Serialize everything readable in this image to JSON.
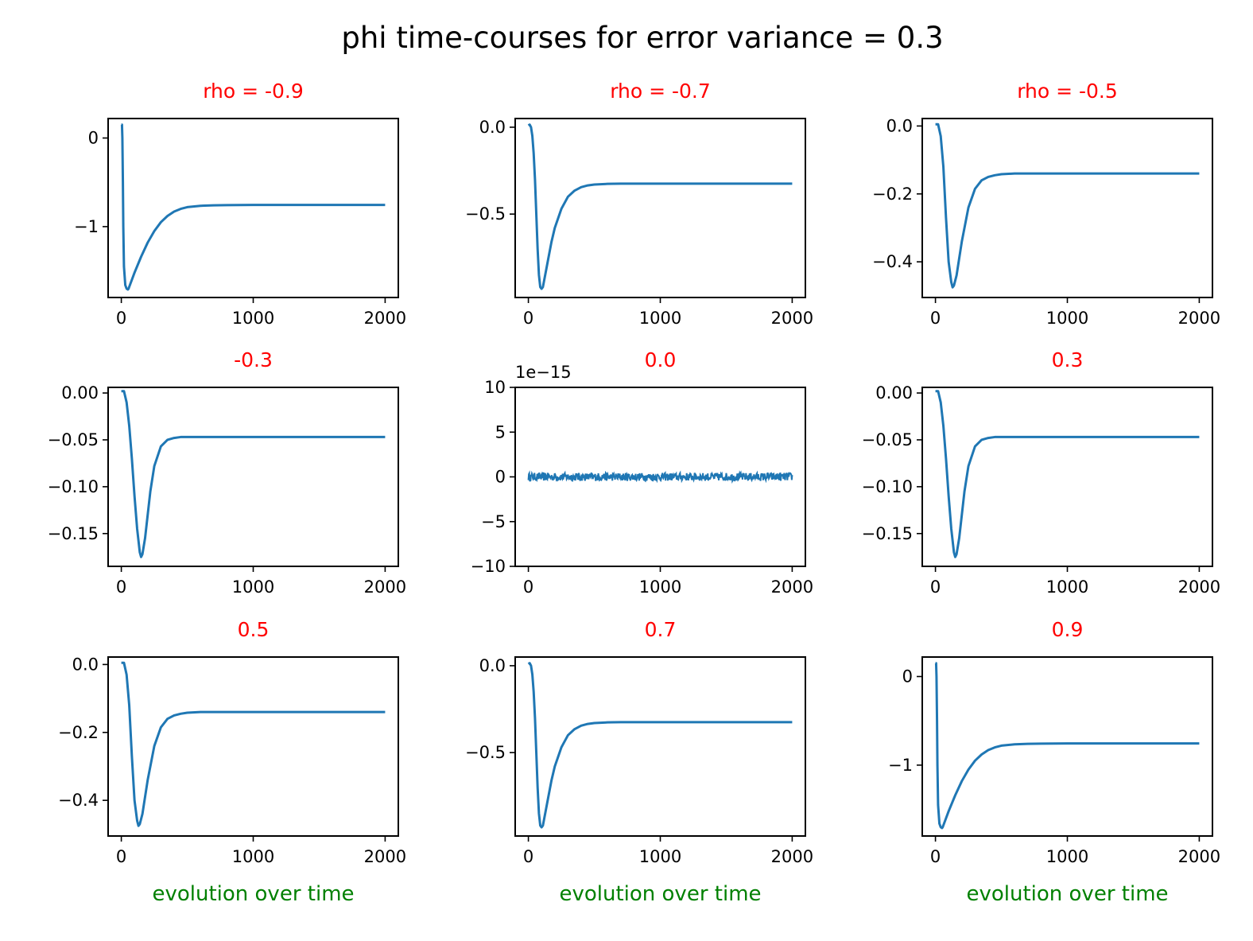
{
  "suptitle": "phi time-courses for error variance = 0.3",
  "colors": {
    "line": "#1f77b4",
    "title": "#ff0000",
    "xlabel": "#008000",
    "text": "#000000",
    "frame": "#000000"
  },
  "chart_data": [
    {
      "type": "line",
      "title": "rho = -0.9",
      "xlabel": "",
      "xlim": [
        -100,
        2100
      ],
      "ylim": [
        -1.8,
        0.22
      ],
      "xticks": [
        0,
        1000,
        2000
      ],
      "xticklabels": [
        "0",
        "1000",
        "2000"
      ],
      "yticks": [
        0,
        -1
      ],
      "yticklabels": [
        "0",
        "−1"
      ],
      "offset_label": "",
      "series": [
        {
          "x": [
            0,
            5,
            8,
            12,
            15,
            20,
            30,
            40,
            50,
            55,
            60,
            80,
            100,
            150,
            200,
            250,
            300,
            350,
            400,
            450,
            500,
            600,
            700,
            800,
            1000,
            1500,
            2000
          ],
          "y": [
            0.15,
            0.15,
            0.0,
            -0.5,
            -1.0,
            -1.45,
            -1.66,
            -1.7,
            -1.71,
            -1.7,
            -1.68,
            -1.6,
            -1.52,
            -1.34,
            -1.18,
            -1.05,
            -0.95,
            -0.88,
            -0.83,
            -0.8,
            -0.78,
            -0.765,
            -0.76,
            -0.757,
            -0.755,
            -0.755,
            -0.755
          ]
        }
      ]
    },
    {
      "type": "line",
      "title": "rho = -0.7",
      "xlabel": "",
      "xlim": [
        -100,
        2100
      ],
      "ylim": [
        -0.98,
        0.05
      ],
      "xticks": [
        0,
        1000,
        2000
      ],
      "xticklabels": [
        "0",
        "1000",
        "2000"
      ],
      "yticks": [
        0,
        -0.5
      ],
      "yticklabels": [
        "0.0",
        "−0.5"
      ],
      "offset_label": "",
      "series": [
        {
          "x": [
            0,
            10,
            20,
            30,
            40,
            50,
            60,
            70,
            80,
            90,
            100,
            110,
            120,
            130,
            150,
            175,
            200,
            250,
            300,
            350,
            400,
            450,
            500,
            600,
            700,
            800,
            1000,
            1500,
            2000
          ],
          "y": [
            0.01,
            0.015,
            0.0,
            -0.05,
            -0.15,
            -0.3,
            -0.5,
            -0.7,
            -0.85,
            -0.92,
            -0.93,
            -0.92,
            -0.88,
            -0.84,
            -0.76,
            -0.66,
            -0.58,
            -0.47,
            -0.4,
            -0.365,
            -0.345,
            -0.335,
            -0.33,
            -0.326,
            -0.325,
            -0.325,
            -0.325,
            -0.325,
            -0.325
          ]
        }
      ]
    },
    {
      "type": "line",
      "title": "rho = -0.5",
      "xlabel": "",
      "xlim": [
        -100,
        2100
      ],
      "ylim": [
        -0.505,
        0.022
      ],
      "xticks": [
        0,
        1000,
        2000
      ],
      "xticklabels": [
        "0",
        "1000",
        "2000"
      ],
      "yticks": [
        0,
        -0.2,
        -0.4
      ],
      "yticklabels": [
        "0.0",
        "−0.2",
        "−0.4"
      ],
      "offset_label": "",
      "series": [
        {
          "x": [
            0,
            20,
            40,
            60,
            80,
            100,
            120,
            130,
            140,
            160,
            180,
            200,
            250,
            300,
            350,
            400,
            450,
            500,
            600,
            700,
            800,
            1000,
            1500,
            2000
          ],
          "y": [
            0.005,
            0.005,
            -0.03,
            -0.12,
            -0.27,
            -0.4,
            -0.46,
            -0.475,
            -0.47,
            -0.44,
            -0.39,
            -0.34,
            -0.24,
            -0.185,
            -0.16,
            -0.15,
            -0.145,
            -0.142,
            -0.14,
            -0.14,
            -0.14,
            -0.14,
            -0.14,
            -0.14
          ]
        }
      ]
    },
    {
      "type": "line",
      "title": "-0.3",
      "xlabel": "",
      "xlim": [
        -100,
        2100
      ],
      "ylim": [
        -0.185,
        0.006
      ],
      "xticks": [
        0,
        1000,
        2000
      ],
      "xticklabels": [
        "0",
        "1000",
        "2000"
      ],
      "yticks": [
        0,
        -0.05,
        -0.1,
        -0.15
      ],
      "yticklabels": [
        "0.00",
        "−0.05",
        "−0.10",
        "−0.15"
      ],
      "offset_label": "",
      "series": [
        {
          "x": [
            0,
            20,
            40,
            60,
            80,
            100,
            120,
            140,
            150,
            160,
            180,
            200,
            220,
            250,
            300,
            350,
            400,
            450,
            500,
            600,
            700,
            800,
            1000,
            1500,
            2000
          ],
          "y": [
            0.002,
            0.002,
            -0.01,
            -0.035,
            -0.07,
            -0.11,
            -0.145,
            -0.17,
            -0.175,
            -0.172,
            -0.155,
            -0.13,
            -0.105,
            -0.078,
            -0.057,
            -0.05,
            -0.048,
            -0.047,
            -0.047,
            -0.047,
            -0.047,
            -0.047,
            -0.047,
            -0.047,
            -0.047
          ]
        }
      ]
    },
    {
      "type": "line",
      "title": "0.0",
      "xlabel": "",
      "xlim": [
        -100,
        2100
      ],
      "ylim": [
        -10,
        10
      ],
      "xticks": [
        0,
        1000,
        2000
      ],
      "xticklabels": [
        "0",
        "1000",
        "2000"
      ],
      "yticks": [
        10,
        5,
        0,
        -5,
        -10
      ],
      "yticklabels": [
        "10",
        "5",
        "0",
        "−5",
        "−10"
      ],
      "offset_label": "1e−15",
      "noise": {
        "x_start": 0,
        "x_end": 2000,
        "amplitude": 0.45,
        "points": 600
      },
      "series": []
    },
    {
      "type": "line",
      "title": "0.3",
      "xlabel": "",
      "xlim": [
        -100,
        2100
      ],
      "ylim": [
        -0.185,
        0.006
      ],
      "xticks": [
        0,
        1000,
        2000
      ],
      "xticklabels": [
        "0",
        "1000",
        "2000"
      ],
      "yticks": [
        0,
        -0.05,
        -0.1,
        -0.15
      ],
      "yticklabels": [
        "0.00",
        "−0.05",
        "−0.10",
        "−0.15"
      ],
      "offset_label": "",
      "series": [
        {
          "x": [
            0,
            20,
            40,
            60,
            80,
            100,
            120,
            140,
            150,
            160,
            180,
            200,
            220,
            250,
            300,
            350,
            400,
            450,
            500,
            600,
            700,
            800,
            1000,
            1500,
            2000
          ],
          "y": [
            0.002,
            0.002,
            -0.01,
            -0.035,
            -0.07,
            -0.11,
            -0.145,
            -0.17,
            -0.175,
            -0.172,
            -0.155,
            -0.13,
            -0.105,
            -0.078,
            -0.057,
            -0.05,
            -0.048,
            -0.047,
            -0.047,
            -0.047,
            -0.047,
            -0.047,
            -0.047,
            -0.047,
            -0.047
          ]
        }
      ]
    },
    {
      "type": "line",
      "title": "0.5",
      "xlabel": "evolution over time",
      "xlim": [
        -100,
        2100
      ],
      "ylim": [
        -0.505,
        0.022
      ],
      "xticks": [
        0,
        1000,
        2000
      ],
      "xticklabels": [
        "0",
        "1000",
        "2000"
      ],
      "yticks": [
        0,
        -0.2,
        -0.4
      ],
      "yticklabels": [
        "0.0",
        "−0.2",
        "−0.4"
      ],
      "offset_label": "",
      "series": [
        {
          "x": [
            0,
            20,
            40,
            60,
            80,
            100,
            120,
            130,
            140,
            160,
            180,
            200,
            250,
            300,
            350,
            400,
            450,
            500,
            600,
            700,
            800,
            1000,
            1500,
            2000
          ],
          "y": [
            0.005,
            0.005,
            -0.03,
            -0.12,
            -0.27,
            -0.4,
            -0.46,
            -0.475,
            -0.47,
            -0.44,
            -0.39,
            -0.34,
            -0.24,
            -0.185,
            -0.16,
            -0.15,
            -0.145,
            -0.142,
            -0.14,
            -0.14,
            -0.14,
            -0.14,
            -0.14,
            -0.14
          ]
        }
      ]
    },
    {
      "type": "line",
      "title": "0.7",
      "xlabel": "evolution over time",
      "xlim": [
        -100,
        2100
      ],
      "ylim": [
        -0.98,
        0.05
      ],
      "xticks": [
        0,
        1000,
        2000
      ],
      "xticklabels": [
        "0",
        "1000",
        "2000"
      ],
      "yticks": [
        0,
        -0.5
      ],
      "yticklabels": [
        "0.0",
        "−0.5"
      ],
      "offset_label": "",
      "series": [
        {
          "x": [
            0,
            10,
            20,
            30,
            40,
            50,
            60,
            70,
            80,
            90,
            100,
            110,
            120,
            130,
            150,
            175,
            200,
            250,
            300,
            350,
            400,
            450,
            500,
            600,
            700,
            800,
            1000,
            1500,
            2000
          ],
          "y": [
            0.01,
            0.015,
            0.0,
            -0.05,
            -0.15,
            -0.3,
            -0.5,
            -0.7,
            -0.85,
            -0.92,
            -0.93,
            -0.92,
            -0.88,
            -0.84,
            -0.76,
            -0.66,
            -0.58,
            -0.47,
            -0.4,
            -0.365,
            -0.345,
            -0.335,
            -0.33,
            -0.326,
            -0.325,
            -0.325,
            -0.325,
            -0.325,
            -0.325
          ]
        }
      ]
    },
    {
      "type": "line",
      "title": "0.9",
      "xlabel": "evolution over time",
      "xlim": [
        -100,
        2100
      ],
      "ylim": [
        -1.8,
        0.22
      ],
      "xticks": [
        0,
        1000,
        2000
      ],
      "xticklabels": [
        "0",
        "1000",
        "2000"
      ],
      "yticks": [
        0,
        -1
      ],
      "yticklabels": [
        "0",
        "−1"
      ],
      "offset_label": "",
      "series": [
        {
          "x": [
            0,
            5,
            8,
            12,
            15,
            20,
            30,
            40,
            50,
            55,
            60,
            80,
            100,
            150,
            200,
            250,
            300,
            350,
            400,
            450,
            500,
            600,
            700,
            800,
            1000,
            1500,
            2000
          ],
          "y": [
            0.15,
            0.15,
            0.0,
            -0.5,
            -1.0,
            -1.45,
            -1.66,
            -1.7,
            -1.71,
            -1.7,
            -1.68,
            -1.6,
            -1.52,
            -1.34,
            -1.18,
            -1.05,
            -0.95,
            -0.88,
            -0.83,
            -0.8,
            -0.78,
            -0.765,
            -0.76,
            -0.757,
            -0.755,
            -0.755,
            -0.755
          ]
        }
      ]
    }
  ]
}
